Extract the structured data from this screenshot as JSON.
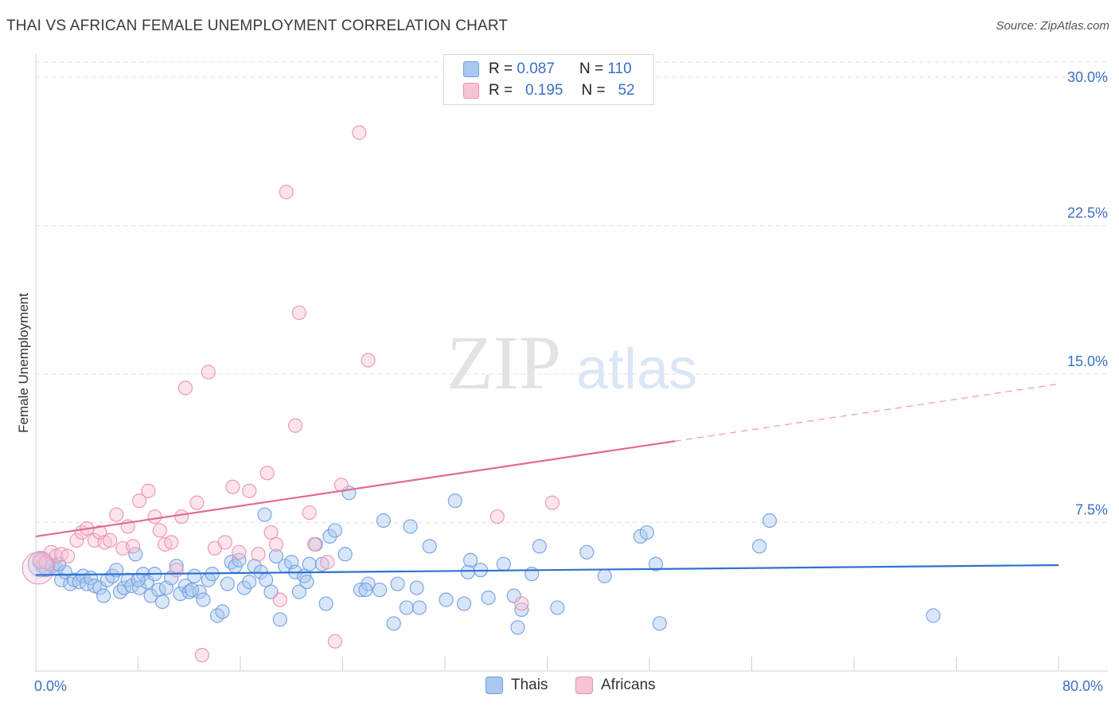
{
  "header": {
    "title": "THAI VS AFRICAN FEMALE UNEMPLOYMENT CORRELATION CHART",
    "source": "Source: ZipAtlas.com"
  },
  "watermark": {
    "zip": "ZIP",
    "atlas": "atlas"
  },
  "legend": {
    "rows": [
      {
        "r_label": "R =",
        "r_value": "0.087",
        "n_label": "N =",
        "n_value": "110",
        "color": "#aac8f0",
        "border": "#6f9fe0"
      },
      {
        "r_label": "R =",
        "r_value": "0.195",
        "n_label": "N =",
        "n_value": "52",
        "color": "#f8c4d4",
        "border": "#ec8fae"
      }
    ]
  },
  "bottom_legend": [
    {
      "label": "Thais",
      "color": "#aac8f0",
      "border": "#6f9fe0"
    },
    {
      "label": "Africans",
      "color": "#f8c4d4",
      "border": "#ec8fae"
    }
  ],
  "chart_data": {
    "type": "scatter",
    "title": "THAI VS AFRICAN FEMALE UNEMPLOYMENT CORRELATION CHART",
    "xlabel": "",
    "ylabel": "Female Unemployment",
    "xlim": [
      0,
      80
    ],
    "ylim": [
      0,
      30
    ],
    "x_tick_labels": [
      "0.0%",
      "80.0%"
    ],
    "y_ticks": [
      7.5,
      15.0,
      22.5,
      30.0
    ],
    "y_tick_labels": [
      "7.5%",
      "15.0%",
      "22.5%",
      "30.0%"
    ],
    "grid": "horizontal-dashed",
    "colors": {
      "thais": "#6f9fe0",
      "thais_fill": "#aac8f0",
      "thais_line": "#2f72d0",
      "africans": "#ec8fae",
      "africans_fill": "#f8c4d4",
      "africans_line": "#e46a93",
      "axis_text": "#3a6fc7"
    },
    "series": [
      {
        "name": "Thais",
        "trend": {
          "x": [
            0,
            80
          ],
          "y": [
            4.85,
            5.35
          ],
          "dashed_from": null
        },
        "points": [
          [
            0.5,
            5.3
          ],
          [
            0.8,
            5.1
          ],
          [
            1.0,
            5.4
          ],
          [
            1.3,
            5.3
          ],
          [
            1.6,
            5.2
          ],
          [
            2.0,
            4.6
          ],
          [
            2.3,
            5.0
          ],
          [
            2.7,
            4.4
          ],
          [
            3.0,
            4.6
          ],
          [
            3.4,
            4.5
          ],
          [
            3.7,
            4.8
          ],
          [
            4.0,
            4.4
          ],
          [
            4.3,
            4.7
          ],
          [
            4.6,
            4.3
          ],
          [
            5.0,
            4.2
          ],
          [
            5.3,
            3.8
          ],
          [
            5.6,
            4.6
          ],
          [
            6.0,
            4.8
          ],
          [
            6.3,
            5.1
          ],
          [
            6.6,
            4.0
          ],
          [
            6.9,
            4.2
          ],
          [
            7.2,
            4.6
          ],
          [
            7.5,
            4.3
          ],
          [
            7.8,
            5.9
          ],
          [
            8.1,
            4.2
          ],
          [
            8.4,
            4.9
          ],
          [
            8.7,
            4.5
          ],
          [
            9.0,
            3.8
          ],
          [
            9.3,
            4.9
          ],
          [
            9.6,
            4.1
          ],
          [
            9.9,
            3.5
          ],
          [
            10.2,
            4.2
          ],
          [
            10.6,
            4.7
          ],
          [
            11.0,
            5.3
          ],
          [
            11.3,
            3.9
          ],
          [
            11.7,
            4.3
          ],
          [
            12.0,
            4.0
          ],
          [
            12.4,
            4.8
          ],
          [
            12.8,
            4.0
          ],
          [
            13.1,
            3.6
          ],
          [
            13.5,
            4.6
          ],
          [
            13.8,
            4.9
          ],
          [
            14.2,
            2.8
          ],
          [
            14.6,
            3.0
          ],
          [
            15.0,
            4.4
          ],
          [
            15.3,
            5.5
          ],
          [
            15.6,
            5.3
          ],
          [
            15.9,
            5.6
          ],
          [
            16.3,
            4.2
          ],
          [
            16.7,
            4.5
          ],
          [
            17.1,
            5.3
          ],
          [
            17.6,
            5.0
          ],
          [
            17.9,
            7.9
          ],
          [
            18.4,
            4.0
          ],
          [
            18.8,
            5.8
          ],
          [
            19.1,
            2.6
          ],
          [
            19.5,
            5.3
          ],
          [
            20.0,
            5.5
          ],
          [
            20.3,
            5.0
          ],
          [
            20.6,
            4.0
          ],
          [
            21.0,
            4.8
          ],
          [
            21.4,
            5.4
          ],
          [
            21.9,
            6.4
          ],
          [
            22.4,
            5.4
          ],
          [
            22.7,
            3.4
          ],
          [
            23.0,
            6.8
          ],
          [
            23.4,
            7.1
          ],
          [
            24.2,
            5.9
          ],
          [
            24.5,
            9.0
          ],
          [
            25.4,
            4.1
          ],
          [
            26.0,
            4.4
          ],
          [
            26.9,
            4.1
          ],
          [
            27.2,
            7.6
          ],
          [
            28.0,
            2.4
          ],
          [
            28.3,
            4.4
          ],
          [
            29.0,
            3.2
          ],
          [
            29.3,
            7.3
          ],
          [
            29.8,
            4.2
          ],
          [
            30.0,
            3.2
          ],
          [
            30.8,
            6.3
          ],
          [
            32.1,
            3.6
          ],
          [
            32.8,
            8.6
          ],
          [
            33.5,
            3.4
          ],
          [
            33.8,
            5.0
          ],
          [
            34.0,
            5.6
          ],
          [
            34.8,
            5.1
          ],
          [
            35.4,
            3.7
          ],
          [
            36.6,
            5.4
          ],
          [
            37.4,
            3.8
          ],
          [
            37.7,
            2.2
          ],
          [
            38.0,
            3.1
          ],
          [
            38.8,
            4.9
          ],
          [
            39.4,
            6.3
          ],
          [
            40.8,
            3.2
          ],
          [
            43.1,
            6.0
          ],
          [
            44.5,
            4.8
          ],
          [
            47.3,
            6.8
          ],
          [
            47.8,
            7.0
          ],
          [
            48.5,
            5.4
          ],
          [
            48.8,
            2.4
          ],
          [
            56.6,
            6.3
          ],
          [
            57.4,
            7.6
          ],
          [
            70.2,
            2.8
          ],
          [
            0.3,
            5.5
          ],
          [
            1.8,
            5.4
          ],
          [
            8.0,
            4.6
          ],
          [
            12.2,
            4.1
          ],
          [
            18.0,
            4.6
          ],
          [
            21.2,
            4.5
          ],
          [
            25.8,
            4.1
          ]
        ]
      },
      {
        "name": "Africans",
        "trend": {
          "x": [
            0,
            80
          ],
          "y": [
            6.8,
            14.5
          ],
          "dashed_from": 50
        },
        "points": [
          [
            0.3,
            5.6
          ],
          [
            0.8,
            5.5
          ],
          [
            1.2,
            6.0
          ],
          [
            1.6,
            5.8
          ],
          [
            2.0,
            5.9
          ],
          [
            2.5,
            5.8
          ],
          [
            3.2,
            6.6
          ],
          [
            3.6,
            7.0
          ],
          [
            4.0,
            7.2
          ],
          [
            4.6,
            6.6
          ],
          [
            5.0,
            7.0
          ],
          [
            5.4,
            6.5
          ],
          [
            5.8,
            6.6
          ],
          [
            6.3,
            7.9
          ],
          [
            6.8,
            6.2
          ],
          [
            7.2,
            7.3
          ],
          [
            7.6,
            6.3
          ],
          [
            8.1,
            8.6
          ],
          [
            8.8,
            9.1
          ],
          [
            9.3,
            7.8
          ],
          [
            9.7,
            7.1
          ],
          [
            10.1,
            6.4
          ],
          [
            10.6,
            6.5
          ],
          [
            11.0,
            5.1
          ],
          [
            11.4,
            7.8
          ],
          [
            11.7,
            14.3
          ],
          [
            12.6,
            8.5
          ],
          [
            13.0,
            0.8
          ],
          [
            13.5,
            15.1
          ],
          [
            14.0,
            6.2
          ],
          [
            14.8,
            6.5
          ],
          [
            15.4,
            9.3
          ],
          [
            15.9,
            6.0
          ],
          [
            16.7,
            9.1
          ],
          [
            17.4,
            5.9
          ],
          [
            18.1,
            10.0
          ],
          [
            18.4,
            7.0
          ],
          [
            18.8,
            6.4
          ],
          [
            19.1,
            3.6
          ],
          [
            19.6,
            24.2
          ],
          [
            20.3,
            12.4
          ],
          [
            20.6,
            18.1
          ],
          [
            21.4,
            8.0
          ],
          [
            21.8,
            6.4
          ],
          [
            22.8,
            5.5
          ],
          [
            23.4,
            1.5
          ],
          [
            23.9,
            9.4
          ],
          [
            25.3,
            27.2
          ],
          [
            26.0,
            15.7
          ],
          [
            36.1,
            7.8
          ],
          [
            38.0,
            3.4
          ],
          [
            40.4,
            8.5
          ]
        ]
      }
    ]
  }
}
